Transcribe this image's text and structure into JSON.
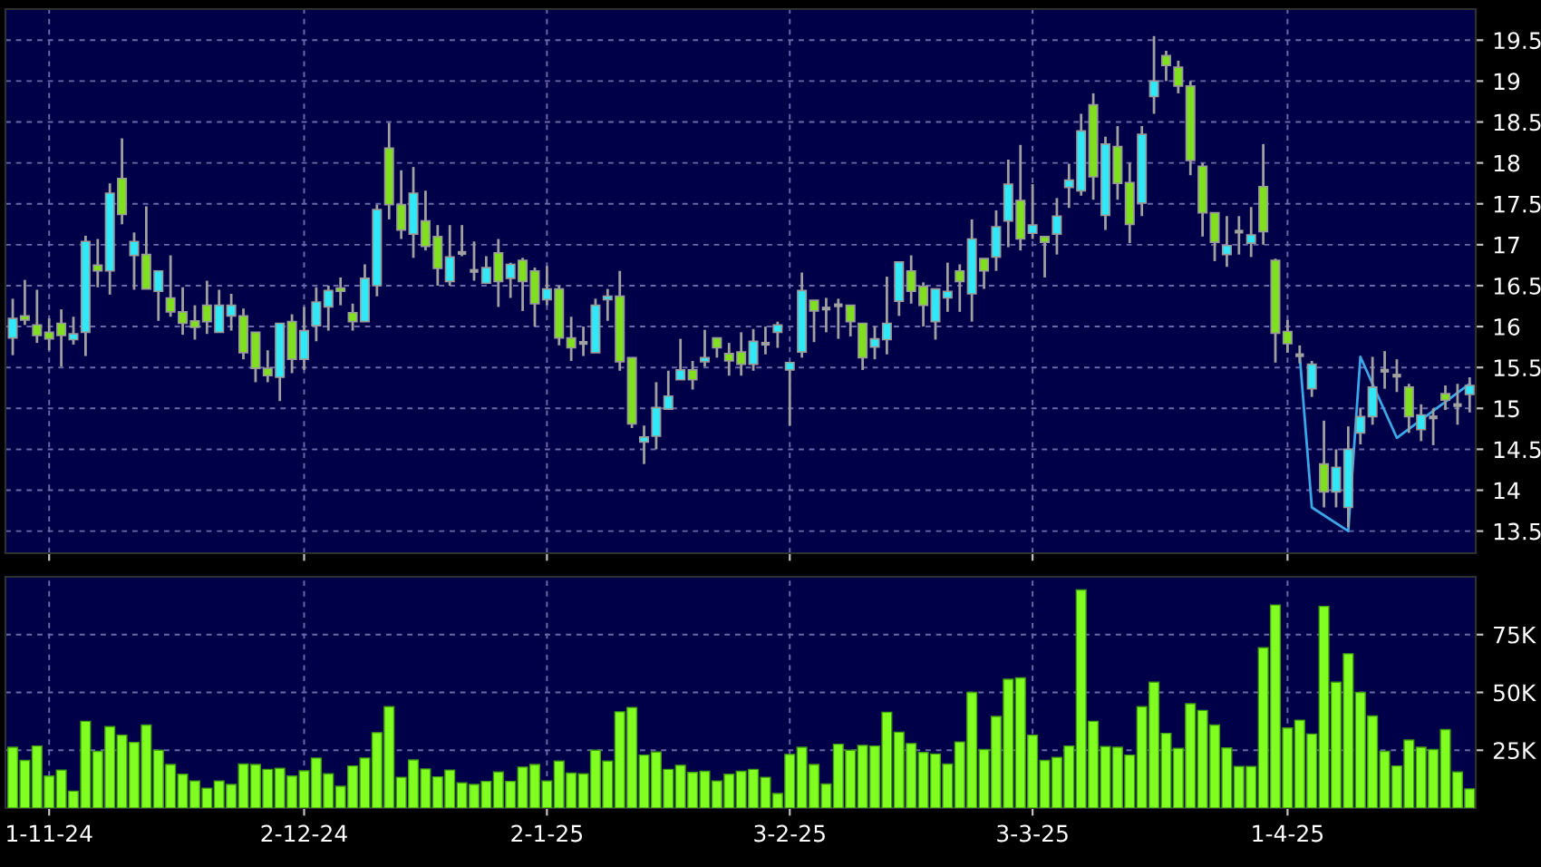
{
  "chart_data": [
    {
      "type": "candlestick",
      "categories": [
        null,
        null,
        null,
        null,
        null,
        null,
        null,
        null,
        null,
        null,
        null,
        null,
        null,
        null,
        null,
        null,
        null,
        null,
        null,
        null,
        null,
        null,
        null,
        null,
        null,
        null,
        null,
        null,
        null,
        null,
        null,
        null,
        null,
        null,
        null,
        null,
        null,
        null,
        null,
        null,
        null,
        null,
        null,
        null,
        null,
        null,
        null,
        null,
        null,
        null,
        null,
        null,
        null,
        null,
        null,
        null,
        null,
        null,
        null,
        null,
        null,
        null,
        null,
        null,
        null,
        null,
        null,
        null,
        null,
        null,
        null,
        null,
        null,
        null,
        null,
        null,
        null,
        null,
        null,
        null,
        null,
        null,
        null,
        null,
        null,
        null,
        null,
        null,
        null,
        null,
        null,
        null,
        null,
        null,
        null,
        null,
        null,
        null,
        null,
        null,
        null,
        null,
        null,
        null,
        null,
        null,
        null,
        null,
        null,
        null,
        null,
        null,
        null,
        null,
        null,
        null,
        null,
        null,
        null,
        null,
        null
      ],
      "ohlc": [
        [
          15.86,
          16.34,
          15.65,
          16.1
        ],
        [
          16.13,
          16.57,
          16.02,
          16.08
        ],
        [
          16.02,
          16.45,
          15.8,
          15.89
        ],
        [
          15.93,
          16.1,
          15.71,
          15.85
        ],
        [
          16.04,
          16.21,
          15.51,
          15.89
        ],
        [
          15.84,
          16.12,
          15.78,
          15.91
        ],
        [
          15.93,
          17.11,
          15.64,
          17.04
        ],
        [
          16.75,
          17.07,
          16.48,
          16.68
        ],
        [
          16.68,
          17.75,
          16.39,
          17.63
        ],
        [
          17.81,
          18.3,
          17.25,
          17.37
        ],
        [
          16.87,
          17.15,
          16.45,
          17.04
        ],
        [
          16.88,
          17.47,
          16.46,
          16.46
        ],
        [
          16.43,
          16.68,
          16.07,
          16.68
        ],
        [
          16.35,
          16.87,
          16.12,
          16.18
        ],
        [
          16.18,
          16.48,
          15.9,
          16.04
        ],
        [
          16.07,
          16.26,
          15.84,
          15.99
        ],
        [
          16.26,
          16.56,
          15.91,
          16.06
        ],
        [
          15.93,
          16.45,
          15.93,
          16.26
        ],
        [
          16.13,
          16.4,
          15.95,
          16.26
        ],
        [
          16.13,
          16.22,
          15.6,
          15.68
        ],
        [
          15.93,
          15.93,
          15.32,
          15.49
        ],
        [
          15.49,
          15.71,
          15.32,
          15.4
        ],
        [
          15.38,
          16.04,
          15.09,
          16.04
        ],
        [
          16.06,
          16.15,
          15.43,
          15.6
        ],
        [
          15.6,
          16.24,
          15.47,
          15.95
        ],
        [
          16.01,
          16.48,
          15.82,
          16.3
        ],
        [
          16.24,
          16.5,
          15.95,
          16.44
        ],
        [
          16.47,
          16.6,
          16.26,
          16.43
        ],
        [
          16.17,
          16.28,
          15.95,
          16.06
        ],
        [
          16.06,
          16.76,
          16.06,
          16.59
        ],
        [
          16.5,
          17.49,
          16.37,
          17.43
        ],
        [
          18.18,
          18.49,
          17.31,
          17.49
        ],
        [
          17.49,
          17.91,
          17.07,
          17.18
        ],
        [
          17.13,
          17.95,
          16.84,
          17.63
        ],
        [
          17.29,
          17.66,
          16.93,
          16.98
        ],
        [
          17.1,
          17.24,
          16.5,
          16.71
        ],
        [
          16.55,
          17.24,
          16.5,
          16.85
        ],
        [
          16.9,
          17.24,
          16.86,
          16.9
        ],
        [
          16.68,
          17.04,
          16.56,
          16.68
        ],
        [
          16.53,
          16.86,
          16.52,
          16.72
        ],
        [
          16.9,
          17.07,
          16.24,
          16.55
        ],
        [
          16.59,
          16.78,
          16.35,
          16.76
        ],
        [
          16.81,
          16.84,
          16.19,
          16.55
        ],
        [
          16.68,
          16.72,
          16.0,
          16.28
        ],
        [
          16.33,
          16.74,
          16.26,
          16.46
        ],
        [
          16.46,
          16.5,
          15.77,
          15.86
        ],
        [
          15.86,
          16.12,
          15.58,
          15.74
        ],
        [
          15.8,
          16.0,
          15.64,
          15.8
        ],
        [
          15.68,
          16.34,
          15.68,
          16.26
        ],
        [
          16.33,
          16.46,
          16.07,
          16.37
        ],
        [
          16.37,
          16.68,
          15.46,
          15.57
        ],
        [
          15.62,
          15.62,
          14.76,
          14.81
        ],
        [
          14.59,
          14.79,
          14.32,
          14.65
        ],
        [
          14.66,
          15.32,
          14.5,
          15.01
        ],
        [
          14.99,
          15.46,
          14.99,
          15.15
        ],
        [
          15.35,
          15.85,
          15.35,
          15.47
        ],
        [
          15.47,
          15.58,
          15.23,
          15.35
        ],
        [
          15.57,
          15.96,
          15.51,
          15.62
        ],
        [
          15.86,
          15.86,
          15.62,
          15.74
        ],
        [
          15.67,
          15.8,
          15.4,
          15.58
        ],
        [
          15.69,
          15.93,
          15.4,
          15.54
        ],
        [
          15.54,
          15.97,
          15.46,
          15.82
        ],
        [
          15.79,
          16.0,
          15.66,
          15.79
        ],
        [
          15.93,
          16.06,
          15.74,
          16.02
        ],
        [
          15.47,
          15.56,
          14.79,
          15.56
        ],
        [
          15.69,
          16.66,
          15.62,
          16.44
        ],
        [
          16.32,
          16.32,
          15.81,
          16.19
        ],
        [
          16.22,
          16.35,
          15.93,
          16.22
        ],
        [
          16.26,
          16.34,
          15.85,
          16.26
        ],
        [
          16.26,
          16.26,
          15.88,
          16.06
        ],
        [
          16.04,
          16.04,
          15.47,
          15.62
        ],
        [
          15.75,
          16.0,
          15.6,
          15.85
        ],
        [
          15.84,
          16.61,
          15.66,
          16.04
        ],
        [
          16.31,
          16.79,
          16.13,
          16.79
        ],
        [
          16.68,
          16.87,
          16.28,
          16.43
        ],
        [
          16.49,
          16.54,
          16.0,
          16.26
        ],
        [
          16.06,
          16.46,
          15.84,
          16.46
        ],
        [
          16.35,
          16.78,
          16.18,
          16.43
        ],
        [
          16.68,
          16.76,
          16.18,
          16.55
        ],
        [
          16.4,
          17.31,
          16.06,
          17.07
        ],
        [
          16.83,
          16.83,
          16.46,
          16.68
        ],
        [
          16.85,
          17.42,
          16.68,
          17.22
        ],
        [
          17.29,
          18.04,
          16.97,
          17.74
        ],
        [
          17.54,
          18.22,
          16.93,
          17.07
        ],
        [
          17.14,
          17.74,
          17.07,
          17.24
        ],
        [
          17.1,
          17.1,
          16.6,
          17.03
        ],
        [
          17.13,
          17.57,
          16.88,
          17.35
        ],
        [
          17.7,
          17.99,
          17.45,
          17.79
        ],
        [
          17.66,
          18.6,
          17.6,
          18.39
        ],
        [
          18.71,
          18.85,
          17.55,
          17.83
        ],
        [
          17.36,
          18.32,
          17.18,
          18.23
        ],
        [
          18.2,
          18.45,
          17.55,
          17.75
        ],
        [
          17.76,
          18.0,
          17.02,
          17.25
        ],
        [
          17.51,
          18.45,
          17.35,
          18.35
        ],
        [
          18.81,
          19.55,
          18.6,
          19.0
        ],
        [
          19.31,
          19.37,
          19.0,
          19.19
        ],
        [
          19.17,
          19.25,
          18.85,
          18.94
        ],
        [
          18.94,
          19.0,
          17.85,
          18.03
        ],
        [
          17.96,
          18.0,
          17.1,
          17.39
        ],
        [
          17.39,
          17.39,
          16.8,
          17.03
        ],
        [
          16.88,
          17.35,
          16.73,
          16.99
        ],
        [
          17.16,
          17.35,
          16.88,
          17.16
        ],
        [
          17.02,
          17.46,
          16.85,
          17.12
        ],
        [
          17.71,
          18.23,
          17.0,
          17.16
        ],
        [
          16.81,
          16.83,
          15.56,
          15.92
        ],
        [
          15.94,
          16.08,
          15.68,
          15.79
        ],
        [
          15.65,
          15.77,
          15.55,
          15.65
        ],
        [
          15.24,
          15.58,
          15.14,
          15.54
        ],
        [
          14.32,
          14.85,
          13.79,
          13.98
        ],
        [
          13.98,
          14.5,
          13.79,
          14.28
        ],
        [
          13.79,
          14.78,
          13.55,
          14.5
        ],
        [
          14.7,
          15.0,
          14.56,
          14.9
        ],
        [
          14.9,
          15.63,
          14.8,
          15.26
        ],
        [
          15.46,
          15.7,
          15.24,
          15.46
        ],
        [
          15.4,
          15.6,
          15.2,
          15.4
        ],
        [
          15.26,
          15.3,
          14.7,
          14.9
        ],
        [
          14.74,
          15.05,
          14.6,
          14.92
        ],
        [
          14.89,
          15.0,
          14.55,
          14.89
        ],
        [
          15.18,
          15.28,
          14.98,
          15.1
        ],
        [
          15.04,
          15.3,
          14.8,
          15.04
        ],
        [
          15.17,
          15.38,
          14.95,
          15.28
        ]
      ],
      "colors": [
        "#30e8f8",
        "#80e020",
        "#80e020",
        "#80e020",
        "#80e020",
        "#30e8f8",
        "#30e8f8",
        "#80e020",
        "#30e8f8",
        "#80e020",
        "#30e8f8",
        "#80e020",
        "#30e8f8",
        "#80e020",
        "#80e020",
        "#80e020",
        "#80e020",
        "#30e8f8",
        "#30e8f8",
        "#80e020",
        "#80e020",
        "#80e020",
        "#30e8f8",
        "#80e020",
        "#30e8f8",
        "#30e8f8",
        "#30e8f8",
        "#80e020",
        "#80e020",
        "#30e8f8",
        "#30e8f8",
        "#80e020",
        "#80e020",
        "#30e8f8",
        "#80e020",
        "#80e020",
        "#30e8f8",
        "#a0a0a0",
        "#a0a0a0",
        "#30e8f8",
        "#80e020",
        "#30e8f8",
        "#80e020",
        "#80e020",
        "#30e8f8",
        "#80e020",
        "#80e020",
        "#a0a0a0",
        "#30e8f8",
        "#30e8f8",
        "#80e020",
        "#80e020",
        "#30e8f8",
        "#30e8f8",
        "#30e8f8",
        "#30e8f8",
        "#80e020",
        "#30e8f8",
        "#80e020",
        "#80e020",
        "#80e020",
        "#30e8f8",
        "#a0a0a0",
        "#30e8f8",
        "#30e8f8",
        "#30e8f8",
        "#80e020",
        "#a0a0a0",
        "#a0a0a0",
        "#80e020",
        "#80e020",
        "#30e8f8",
        "#30e8f8",
        "#30e8f8",
        "#80e020",
        "#80e020",
        "#30e8f8",
        "#30e8f8",
        "#80e020",
        "#30e8f8",
        "#80e020",
        "#30e8f8",
        "#30e8f8",
        "#80e020",
        "#30e8f8",
        "#80e020",
        "#30e8f8",
        "#30e8f8",
        "#30e8f8",
        "#80e020",
        "#30e8f8",
        "#80e020",
        "#80e020",
        "#30e8f8",
        "#30e8f8",
        "#80e020",
        "#80e020",
        "#80e020",
        "#80e020",
        "#80e020",
        "#30e8f8",
        "#a0a0a0",
        "#30e8f8",
        "#80e020",
        "#80e020",
        "#80e020",
        "#a0a0a0",
        "#30e8f8",
        "#80e020",
        "#30e8f8",
        "#30e8f8",
        "#30e8f8",
        "#30e8f8",
        "#a0a0a0",
        "#a0a0a0",
        "#80e020",
        "#30e8f8",
        "#a0a0a0",
        "#80e020",
        "#a0a0a0",
        "#30e8f8"
      ],
      "series": [
        {
          "type": "line",
          "color": "#3aa8e8",
          "values": [
            null,
            null,
            null,
            null,
            null,
            null,
            null,
            null,
            null,
            null,
            null,
            null,
            null,
            null,
            null,
            null,
            null,
            null,
            null,
            null,
            null,
            null,
            null,
            null,
            null,
            null,
            null,
            null,
            null,
            null,
            null,
            null,
            null,
            null,
            null,
            null,
            null,
            null,
            null,
            null,
            null,
            null,
            null,
            null,
            null,
            null,
            null,
            null,
            null,
            null,
            null,
            null,
            null,
            null,
            null,
            null,
            null,
            null,
            null,
            null,
            null,
            null,
            null,
            null,
            null,
            null,
            null,
            null,
            null,
            null,
            null,
            null,
            null,
            null,
            null,
            null,
            null,
            null,
            null,
            null,
            null,
            null,
            null,
            null,
            null,
            null,
            null,
            null,
            null,
            null,
            null,
            null,
            null,
            null,
            null,
            null,
            null,
            null,
            null,
            null,
            null,
            null,
            null,
            null,
            null,
            null,
            15.65,
            13.79,
            null,
            null,
            13.5,
            15.63,
            null,
            null,
            14.64,
            null,
            null,
            null,
            null,
            null,
            15.3
          ]
        }
      ],
      "ylim": [
        13.23,
        19.88
      ],
      "yticks": [
        13.5,
        14,
        14.5,
        15,
        15.5,
        16,
        16.5,
        17,
        17.5,
        18,
        18.5,
        19,
        19.5
      ],
      "grid": true,
      "tick_labels": "y"
    },
    {
      "type": "bar",
      "categories": [
        null,
        null,
        null,
        "1-11-24",
        null,
        null,
        null,
        null,
        null,
        null,
        null,
        null,
        null,
        null,
        null,
        null,
        null,
        null,
        null,
        null,
        null,
        null,
        null,
        null,
        "2-12-24",
        null,
        null,
        null,
        null,
        null,
        null,
        null,
        null,
        null,
        null,
        null,
        null,
        null,
        null,
        null,
        null,
        null,
        null,
        null,
        "2-1-25",
        null,
        null,
        null,
        null,
        null,
        null,
        null,
        null,
        null,
        null,
        null,
        null,
        null,
        null,
        null,
        null,
        null,
        null,
        null,
        "3-2-25",
        null,
        null,
        null,
        null,
        null,
        null,
        null,
        null,
        null,
        null,
        null,
        null,
        null,
        null,
        null,
        null,
        null,
        null,
        null,
        "3-3-25",
        null,
        null,
        null,
        null,
        null,
        null,
        null,
        null,
        null,
        null,
        null,
        null,
        null,
        null,
        null,
        null,
        null,
        null,
        null,
        null,
        "1-4-25",
        null,
        null,
        null,
        null,
        null,
        null,
        null,
        null,
        null,
        null,
        null,
        null,
        null,
        null,
        null
      ],
      "values": [
        26.3,
        20.6,
        26.8,
        13.8,
        16.4,
        7.3,
        37.5,
        24.5,
        35.2,
        31.5,
        28.4,
        35.9,
        25.0,
        18.8,
        14.6,
        11.7,
        8.6,
        11.7,
        10.2,
        19.0,
        18.8,
        16.7,
        17.2,
        13.8,
        16.1,
        21.6,
        14.8,
        9.4,
        18.2,
        21.6,
        32.6,
        43.8,
        13.3,
        20.8,
        16.9,
        13.5,
        16.4,
        10.9,
        10.2,
        11.5,
        15.6,
        11.5,
        17.7,
        18.8,
        11.7,
        20.3,
        15.1,
        14.8,
        25.0,
        20.3,
        41.6,
        43.5,
        22.9,
        24.2,
        16.7,
        18.5,
        15.4,
        15.9,
        11.7,
        14.6,
        15.9,
        16.7,
        13.3,
        6.3,
        23.2,
        26.3,
        18.8,
        10.4,
        27.6,
        25.0,
        27.1,
        26.8,
        41.4,
        32.8,
        27.9,
        24.0,
        23.4,
        19.0,
        28.6,
        50.0,
        25.3,
        39.6,
        55.7,
        56.3,
        31.5,
        20.6,
        21.9,
        26.8,
        94.3,
        37.5,
        26.6,
        26.3,
        22.9,
        43.8,
        54.4,
        32.3,
        25.8,
        45.1,
        42.2,
        35.9,
        26.0,
        18.0,
        18.0,
        69.3,
        87.8,
        34.6,
        38.0,
        32.0,
        87.2,
        54.4,
        66.7,
        50.0,
        39.8,
        24.5,
        18.2,
        29.4,
        26.3,
        25.3,
        33.9,
        15.6,
        8.3
      ],
      "color": "#80ff20",
      "ylim": [
        0,
        100
      ],
      "yticks": [
        {
          "value": 25,
          "label": "25K"
        },
        {
          "value": 50,
          "label": "50K"
        },
        {
          "value": 75,
          "label": "75K"
        }
      ],
      "grid": true
    }
  ]
}
